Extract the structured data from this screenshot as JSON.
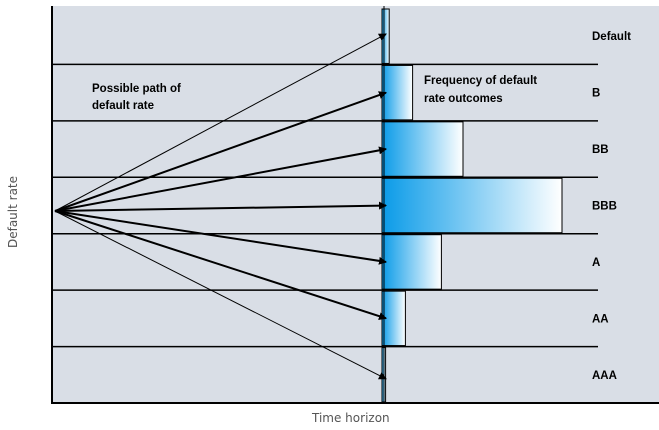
{
  "axes": {
    "y_label": "Default rate",
    "x_label": "Time horizon"
  },
  "annotations": {
    "path": [
      "Possible path of",
      "default rate"
    ],
    "frequency": [
      "Frequency of default",
      "rate outcomes"
    ]
  },
  "bands": [
    {
      "label": "Default",
      "relative_frequency": 0.04
    },
    {
      "label": "B",
      "relative_frequency": 0.17
    },
    {
      "label": "BB",
      "relative_frequency": 0.45
    },
    {
      "label": "BBB",
      "relative_frequency": 1.0
    },
    {
      "label": "A",
      "relative_frequency": 0.33
    },
    {
      "label": "AA",
      "relative_frequency": 0.13
    },
    {
      "label": "AAA",
      "relative_frequency": 0.02
    }
  ],
  "arrows": [
    {
      "target_band": "Default",
      "weight": "thin"
    },
    {
      "target_band": "B",
      "weight": "bold"
    },
    {
      "target_band": "BB",
      "weight": "bold"
    },
    {
      "target_band": "BBB",
      "weight": "bold"
    },
    {
      "target_band": "A",
      "weight": "bold"
    },
    {
      "target_band": "AA",
      "weight": "bold"
    },
    {
      "target_band": "AAA",
      "weight": "thin"
    }
  ],
  "colors": {
    "background": "#d9dee6",
    "gridline": "#000000",
    "bar_dark": "#0a9be8",
    "bar_light": "#ffffff"
  }
}
